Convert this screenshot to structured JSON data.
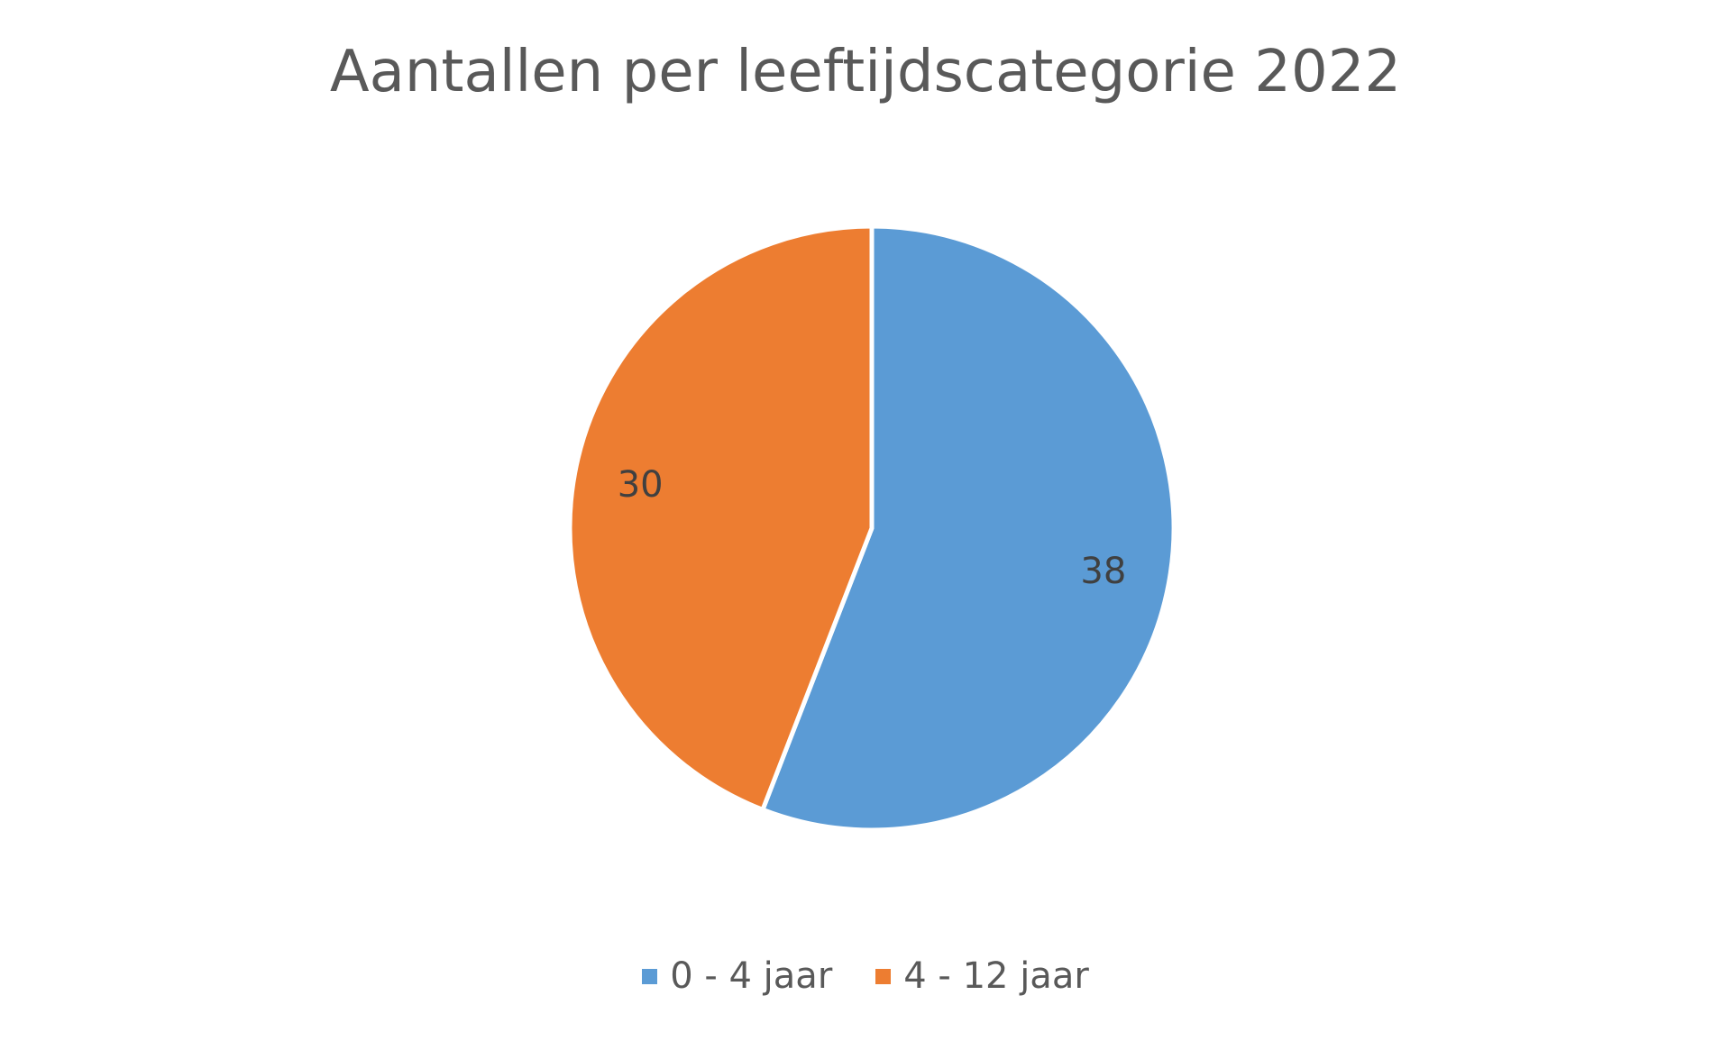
{
  "chart_data": {
    "type": "pie",
    "title": "Aantallen per leeftijdscategorie 2022",
    "categories": [
      "0 - 4 jaar",
      "4 - 12 jaar"
    ],
    "values": [
      38,
      30
    ],
    "colors": [
      "#5B9BD5",
      "#ED7D31"
    ],
    "data_labels": [
      "38",
      "30"
    ],
    "legend_position": "bottom",
    "start_angle_deg": 0,
    "direction": "clockwise"
  }
}
